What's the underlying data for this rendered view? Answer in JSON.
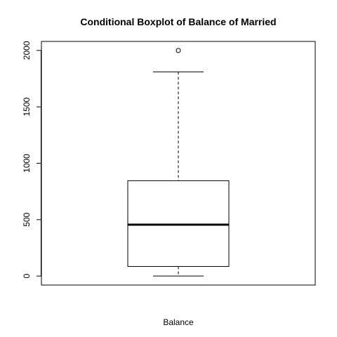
{
  "chart_data": {
    "type": "boxplot",
    "title": "Conditional Boxplot of Balance of Married",
    "xlabel": "Balance",
    "ylabel": "",
    "ylim": [
      -80,
      2080
    ],
    "y_ticks": [
      0,
      500,
      1000,
      1500,
      2000
    ],
    "grid": false,
    "series": [
      {
        "min": 0,
        "q1": 85,
        "median": 455,
        "q3": 845,
        "max": 1810,
        "outliers": [
          2000
        ]
      }
    ]
  }
}
